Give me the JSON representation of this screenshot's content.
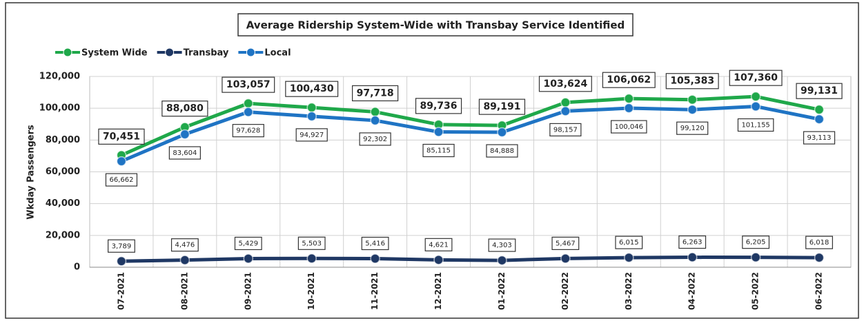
{
  "chart_data": {
    "type": "line",
    "title": "Average Ridership System-Wide with Transbay Service Identified",
    "y_label": "Wkday Passengers",
    "categories": [
      "07-2021",
      "08-2021",
      "09-2021",
      "10-2021",
      "11-2021",
      "12-2021",
      "01-2022",
      "02-2022",
      "03-2022",
      "04-2022",
      "05-2022",
      "06-2022"
    ],
    "series": [
      {
        "name": "System Wide",
        "color": "#1fa84a",
        "values": [
          70451,
          88080,
          103057,
          100430,
          97718,
          89736,
          89191,
          103624,
          106062,
          105383,
          107360,
          99131
        ],
        "value_labels": [
          "70,451",
          "88,080",
          "103,057",
          "100,430",
          "97,718",
          "89,736",
          "89,191",
          "103,624",
          "106,062",
          "105,383",
          "107,360",
          "99,131"
        ]
      },
      {
        "name": "Transbay",
        "color": "#1f3864",
        "values": [
          3789,
          4476,
          5429,
          5503,
          5416,
          4621,
          4303,
          5467,
          6015,
          6263,
          6205,
          6018
        ],
        "value_labels": [
          "3,789",
          "4,476",
          "5,429",
          "5,503",
          "5,416",
          "4,621",
          "4,303",
          "5,467",
          "6,015",
          "6,263",
          "6,205",
          "6,018"
        ]
      },
      {
        "name": "Local",
        "color": "#1f74c4",
        "values": [
          66662,
          83604,
          97628,
          94927,
          92302,
          85115,
          84888,
          98157,
          100046,
          99120,
          101155,
          93113
        ],
        "value_labels": [
          "66,662",
          "83,604",
          "97,628",
          "94,927",
          "92,302",
          "85,115",
          "84,888",
          "98,157",
          "100,046",
          "99,120",
          "101,155",
          "93,113"
        ]
      }
    ],
    "ylim": [
      0,
      120000
    ],
    "yticks": [
      0,
      {
        "value": 20000,
        "label": "20,000"
      },
      {
        "value": 40000,
        "label": "40,000"
      },
      {
        "value": 60000,
        "label": "60,000"
      },
      {
        "value": 80000,
        "label": "80,000"
      },
      {
        "value": 100000,
        "label": "100,000"
      },
      {
        "value": 120000,
        "label": "120,000"
      }
    ],
    "grid": true,
    "legend": "top-left"
  }
}
